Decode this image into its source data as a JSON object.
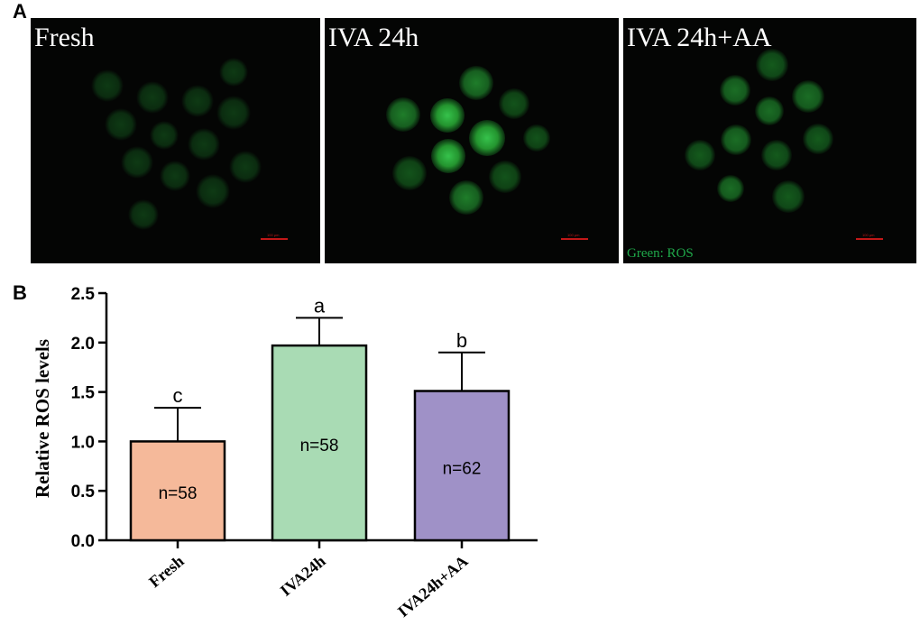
{
  "panel_a": {
    "letter": "A",
    "images": [
      {
        "label": "Fresh",
        "scale_text": "100 μm"
      },
      {
        "label": "IVA 24h",
        "scale_text": "100 μm"
      },
      {
        "label": "IVA 24h+AA",
        "scale_text": "100 μm",
        "legend": "Green: ROS"
      }
    ],
    "colors": {
      "background": "#040504",
      "ros_green": "#1fa84a",
      "scale_bar": "#c21818"
    }
  },
  "panel_b": {
    "letter": "B"
  },
  "chart_data": {
    "type": "bar",
    "categories": [
      "Fresh",
      "IVA24h",
      "IVA24h+AA"
    ],
    "values": [
      1.0,
      1.97,
      1.51
    ],
    "errors": [
      0.34,
      0.28,
      0.39
    ],
    "significance_letters": [
      "c",
      "a",
      "b"
    ],
    "n_labels": [
      "n=58",
      "n=58",
      "n=62"
    ],
    "colors": [
      "#f5b99a",
      "#a9dbb4",
      "#9f91c7"
    ],
    "title": "",
    "xlabel": "",
    "ylabel": "Relative ROS levels",
    "ylim": [
      0,
      2.5
    ],
    "yticks": [
      "0.0",
      "0.5",
      "1.0",
      "1.5",
      "2.0",
      "2.5"
    ],
    "grid": false
  }
}
